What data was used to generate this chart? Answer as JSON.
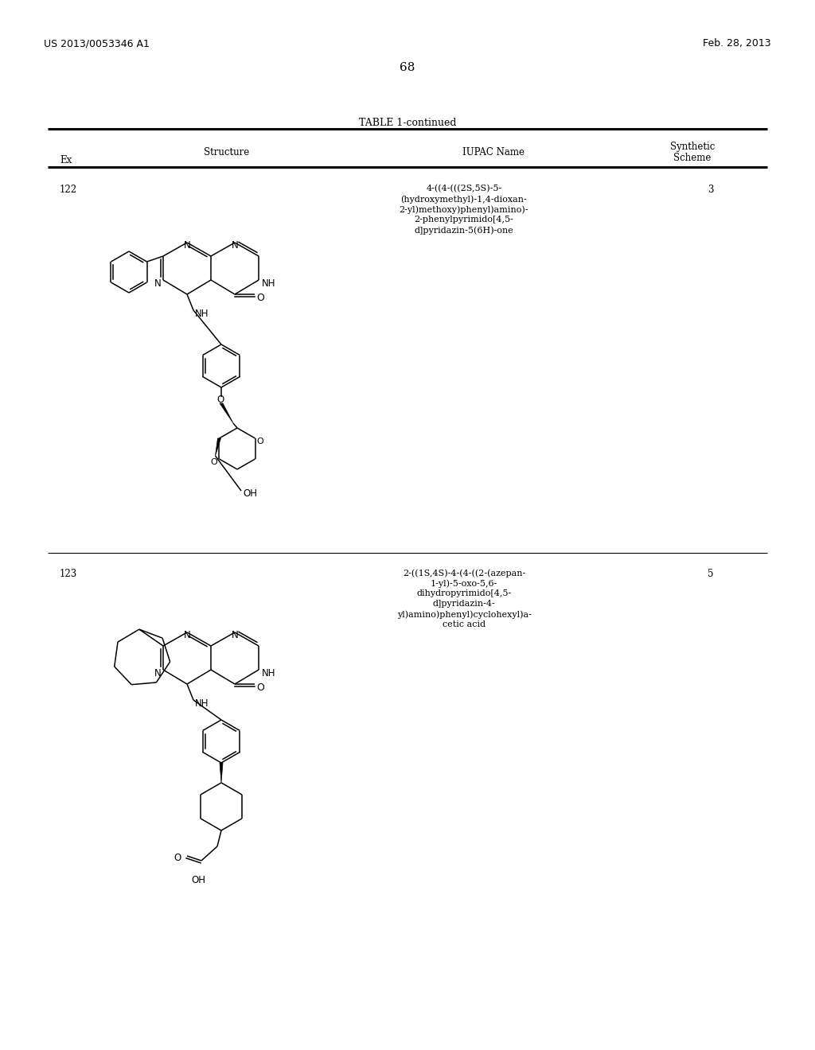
{
  "header_left": "US 2013/0053346 A1",
  "header_right": "Feb. 28, 2013",
  "page_number": "68",
  "table_title": "TABLE 1-continued",
  "background_color": "#ffffff",
  "text_color": "#000000",
  "entry1_ex": "122",
  "entry1_iupac_lines": [
    "4-((4-(((2S,5S)-5-",
    "(hydroxymethyl)-1,4-dioxan-",
    "2-yl)methoxy)phenyl)amino)-",
    "2-phenylpyrimido[4,5-",
    "d]pyridazin-5(6H)-one"
  ],
  "entry1_scheme": "3",
  "entry2_ex": "123",
  "entry2_iupac_lines": [
    "2-((1S,4S)-4-(4-((2-(azepan-",
    "1-yl)-5-oxo-5,6-",
    "dihydropyrimido[4,5-",
    "d]pyridazin-4-",
    "yl)amino)phenyl)cyclohexyl)a-",
    "cetic acid"
  ],
  "entry2_scheme": "5"
}
